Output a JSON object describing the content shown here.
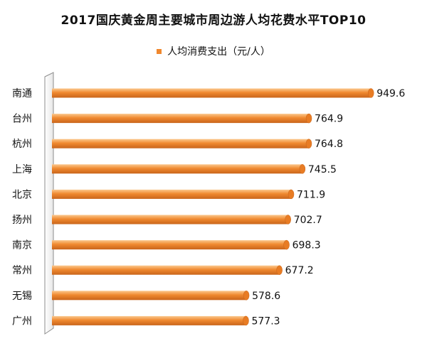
{
  "chart_data": {
    "type": "bar",
    "orientation": "horizontal",
    "title": "2017国庆黄金周主要城市周边游人均花费水平TOP10",
    "legend_position": "top",
    "categories": [
      "南通",
      "台州",
      "杭州",
      "上海",
      "北京",
      "扬州",
      "南京",
      "常州",
      "无锡",
      "广州"
    ],
    "series": [
      {
        "name": "人均消费支出（元/人）",
        "color": "#f0882e",
        "values": [
          949.6,
          764.9,
          764.8,
          745.5,
          711.9,
          702.7,
          698.3,
          677.2,
          578.6,
          577.3
        ],
        "labels": [
          "949.6",
          "764.9",
          "764.8",
          "745.5",
          "711.9",
          "702.7",
          "698.3",
          "677.2",
          "578.6",
          "577.3"
        ]
      }
    ],
    "xlim": [
      0,
      1000
    ],
    "grid": false
  }
}
